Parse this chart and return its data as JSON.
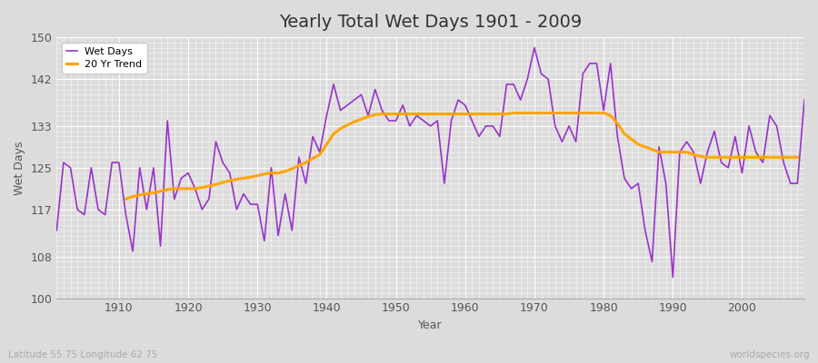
{
  "title": "Yearly Total Wet Days 1901 - 2009",
  "xlabel": "Year",
  "ylabel": "Wet Days",
  "subtitle": "Latitude 55.75 Longitude 62.75",
  "watermark": "worldspecies.org",
  "years": [
    1901,
    1902,
    1903,
    1904,
    1905,
    1906,
    1907,
    1908,
    1909,
    1910,
    1911,
    1912,
    1913,
    1914,
    1915,
    1916,
    1917,
    1918,
    1919,
    1920,
    1921,
    1922,
    1923,
    1924,
    1925,
    1926,
    1927,
    1928,
    1929,
    1930,
    1931,
    1932,
    1933,
    1934,
    1935,
    1936,
    1937,
    1938,
    1939,
    1940,
    1941,
    1942,
    1943,
    1944,
    1945,
    1946,
    1947,
    1948,
    1949,
    1950,
    1951,
    1952,
    1953,
    1954,
    1955,
    1956,
    1957,
    1958,
    1959,
    1960,
    1961,
    1962,
    1963,
    1964,
    1965,
    1966,
    1967,
    1968,
    1969,
    1970,
    1971,
    1972,
    1973,
    1974,
    1975,
    1976,
    1977,
    1978,
    1979,
    1980,
    1981,
    1982,
    1983,
    1984,
    1985,
    1986,
    1987,
    1988,
    1989,
    1990,
    1991,
    1992,
    1993,
    1994,
    1995,
    1996,
    1997,
    1998,
    1999,
    2000,
    2001,
    2002,
    2003,
    2004,
    2005,
    2006,
    2007,
    2008,
    2009
  ],
  "wet_days": [
    113,
    126,
    125,
    117,
    116,
    125,
    117,
    116,
    126,
    126,
    116,
    109,
    125,
    117,
    125,
    110,
    134,
    119,
    123,
    124,
    121,
    117,
    119,
    130,
    126,
    124,
    117,
    120,
    118,
    118,
    111,
    125,
    112,
    120,
    113,
    127,
    122,
    131,
    128,
    135,
    141,
    136,
    137,
    138,
    139,
    135,
    140,
    136,
    134,
    134,
    137,
    133,
    135,
    134,
    133,
    134,
    122,
    134,
    138,
    137,
    134,
    131,
    133,
    133,
    131,
    141,
    141,
    138,
    142,
    148,
    143,
    142,
    133,
    130,
    133,
    130,
    143,
    145,
    145,
    136,
    145,
    131,
    123,
    121,
    122,
    113,
    107,
    129,
    122,
    104,
    128,
    130,
    128,
    122,
    128,
    132,
    126,
    125,
    131,
    124,
    133,
    128,
    126,
    135,
    133,
    126,
    122,
    122,
    138
  ],
  "trend": [
    null,
    null,
    null,
    null,
    null,
    null,
    null,
    null,
    null,
    null,
    119.0,
    119.5,
    119.8,
    120.0,
    120.2,
    120.5,
    120.8,
    121.0,
    121.0,
    121.0,
    121.0,
    121.2,
    121.5,
    121.8,
    122.2,
    122.5,
    122.8,
    123.0,
    123.2,
    123.5,
    123.8,
    124.0,
    124.0,
    124.3,
    124.8,
    125.5,
    126.0,
    126.8,
    127.5,
    129.5,
    131.5,
    132.5,
    133.2,
    133.8,
    134.3,
    134.8,
    135.2,
    135.3,
    135.3,
    135.3,
    135.3,
    135.3,
    135.3,
    135.3,
    135.3,
    135.3,
    135.3,
    135.3,
    135.3,
    135.3,
    135.3,
    135.3,
    135.3,
    135.3,
    135.3,
    135.3,
    135.5,
    135.5,
    135.5,
    135.5,
    135.5,
    135.5,
    135.5,
    135.5,
    135.5,
    135.5,
    135.5,
    135.5,
    135.5,
    135.5,
    135.0,
    133.5,
    131.5,
    130.5,
    129.5,
    129.0,
    128.5,
    128.0,
    128.0,
    128.0,
    128.0,
    128.0,
    127.5,
    127.2,
    127.0,
    127.0,
    127.0,
    127.0,
    127.0,
    127.0,
    127.0,
    127.0,
    127.0,
    127.0,
    127.0,
    127.0,
    127.0,
    127.0,
    null
  ],
  "wet_days_color": "#9933cc",
  "trend_color": "#ffa500",
  "background_color": "#dcdcdc",
  "plot_background": "#dcdcdc",
  "ylim": [
    100,
    150
  ],
  "xlim": [
    1901,
    2009
  ],
  "yticks": [
    100,
    108,
    117,
    125,
    133,
    142,
    150
  ],
  "xticks": [
    1910,
    1920,
    1930,
    1940,
    1950,
    1960,
    1970,
    1980,
    1990,
    2000
  ],
  "grid_color": "#ffffff",
  "title_fontsize": 14,
  "label_fontsize": 9,
  "legend_fontsize": 8
}
